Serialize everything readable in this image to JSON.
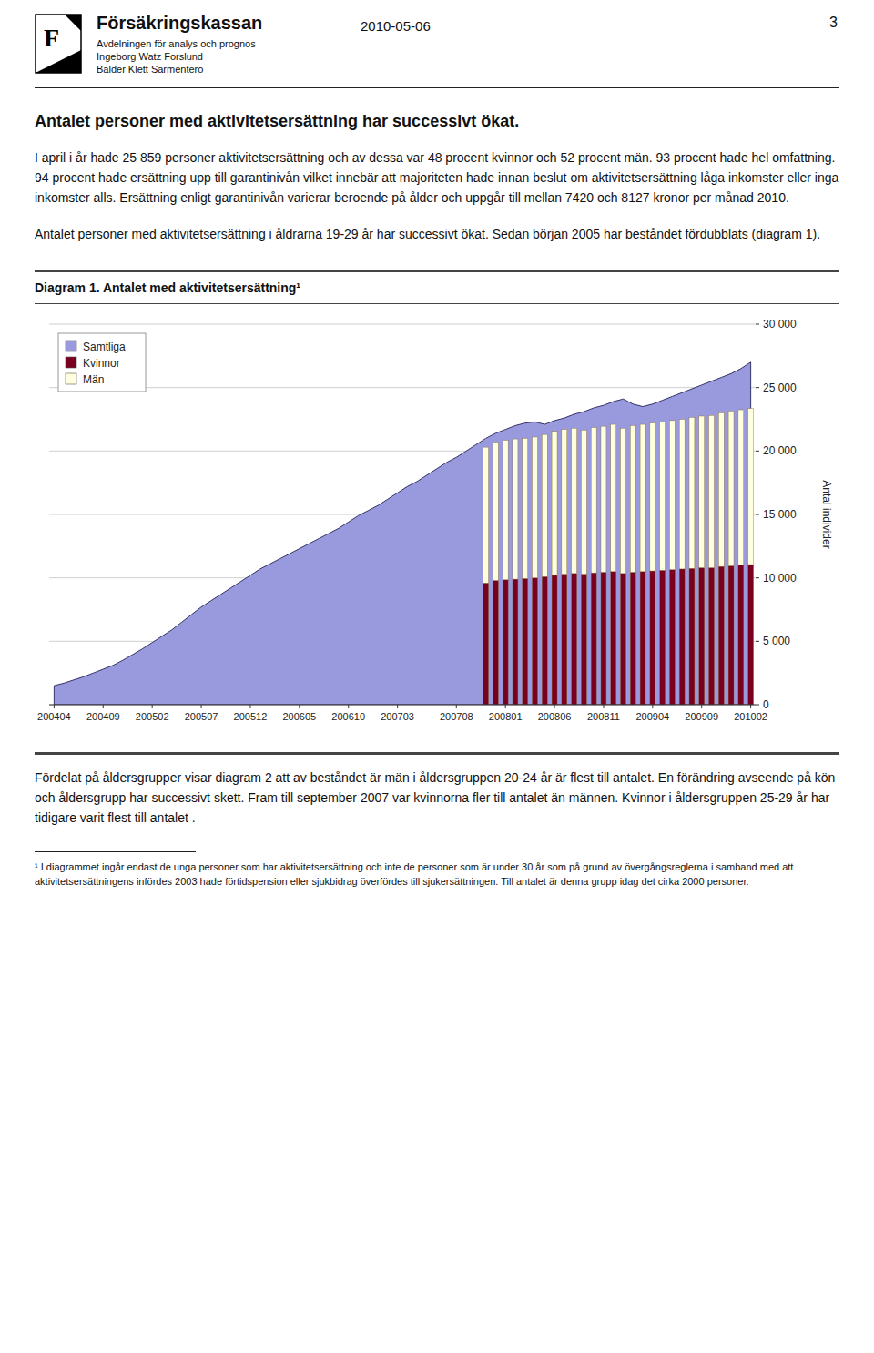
{
  "document": {
    "logo_letter": "F",
    "organization": "Försäkringskassan",
    "department": "Avdelningen för analys och prognos",
    "authors": [
      "Ingeborg Watz Forslund",
      "Balder Klett Sarmentero"
    ],
    "date": "2010-05-06",
    "page": "3",
    "heading": "Antalet personer med aktivitetsersättning har successivt ökat.",
    "paragraphs": [
      "I april i år hade 25 859 personer aktivitetsersättning och av dessa var 48 procent kvinnor och 52 procent män. 93 procent hade hel omfattning. 94 procent hade ersättning upp till garantinivån vilket innebär att majoriteten hade innan beslut om aktivitetsersättning låga inkomster eller inga inkomster alls. Ersättning enligt garantinivån varierar beroende på ålder och uppgår till mellan 7420 och 8127 kronor per månad 2010.",
      "Antalet personer med aktivitetsersättning i åldrarna 19-29 år har successivt ökat. Sedan början 2005 har beståndet fördubblats (diagram 1)."
    ],
    "paragraphs_after": [
      "Fördelat på åldersgrupper visar diagram 2 att av beståndet är män i åldersgruppen 20-24 år är flest till antalet. En förändring avseende på kön och åldersgrupp har successivt skett. Fram till september 2007 var kvinnorna fler till antalet än männen. Kvinnor i åldersgruppen 25-29 år har tidigare varit flest till antalet ."
    ],
    "footnote": "¹ I diagrammet ingår endast de unga personer som har aktivitetsersättning och inte de personer som är under 30 år som på grund av övergångsreglerna i samband med att aktivitetsersättningens infördes 2003 hade förtidspension eller sjukbidrag överfördes till sjukersättningen. Till antalet är denna grupp idag det cirka 2000 personer."
  },
  "chart_data": {
    "type": "bar",
    "title": "Diagram 1. Antalet med aktivitetsersättning¹",
    "ylabel": "Antal individer",
    "categories": [
      "200404",
      null,
      null,
      null,
      null,
      "200409",
      null,
      null,
      null,
      null,
      "200502",
      null,
      null,
      null,
      null,
      "200507",
      null,
      null,
      null,
      null,
      "200512",
      null,
      null,
      null,
      null,
      "200605",
      null,
      null,
      null,
      null,
      "200610",
      null,
      null,
      null,
      null,
      "200703",
      null,
      null,
      null,
      null,
      null,
      "200708",
      null,
      null,
      null,
      null,
      "200801",
      null,
      null,
      null,
      null,
      "200806",
      null,
      null,
      null,
      null,
      "200811",
      null,
      null,
      null,
      null,
      "200904",
      null,
      null,
      null,
      null,
      "200909",
      null,
      null,
      null,
      null,
      "201002"
    ],
    "series": [
      {
        "name": "Samtliga",
        "type": "area",
        "color": "#9999dd",
        "values": [
          1500,
          1700,
          1950,
          2200,
          2500,
          2800,
          3100,
          3500,
          3950,
          4400,
          4900,
          5400,
          5900,
          6500,
          7100,
          7700,
          8200,
          8700,
          9200,
          9700,
          10200,
          10700,
          11100,
          11500,
          11900,
          12300,
          12700,
          13100,
          13500,
          13900,
          14400,
          14900,
          15300,
          15700,
          16200,
          16700,
          17200,
          17600,
          18100,
          18600,
          19100,
          19500,
          20000,
          20500,
          21000,
          21400,
          21700,
          22000,
          22200,
          22300,
          22100,
          22400,
          22600,
          22900,
          23100,
          23400,
          23600,
          23900,
          24100,
          23700,
          23500,
          23700,
          24000,
          24300,
          24600,
          24900,
          25200,
          25500,
          25800,
          26100,
          26500,
          27000
        ]
      },
      {
        "name": "Kvinnor",
        "type": "bar",
        "color": "#7a0020",
        "values": [
          null,
          null,
          null,
          null,
          null,
          null,
          null,
          null,
          null,
          null,
          null,
          null,
          null,
          null,
          null,
          null,
          null,
          null,
          null,
          null,
          null,
          null,
          null,
          null,
          null,
          null,
          null,
          null,
          null,
          null,
          null,
          null,
          null,
          null,
          null,
          null,
          null,
          null,
          null,
          null,
          null,
          null,
          null,
          null,
          9600,
          9800,
          9850,
          9900,
          9950,
          10000,
          10100,
          10200,
          10300,
          10350,
          10300,
          10400,
          10450,
          10500,
          10350,
          10450,
          10500,
          10550,
          10600,
          10650,
          10700,
          10750,
          10800,
          10800,
          10900,
          10950,
          11000,
          11050
        ]
      },
      {
        "name": "Män",
        "type": "bar",
        "color": "#ffffdd",
        "values": [
          null,
          null,
          null,
          null,
          null,
          null,
          null,
          null,
          null,
          null,
          null,
          null,
          null,
          null,
          null,
          null,
          null,
          null,
          null,
          null,
          null,
          null,
          null,
          null,
          null,
          null,
          null,
          null,
          null,
          null,
          null,
          null,
          null,
          null,
          null,
          null,
          null,
          null,
          null,
          null,
          null,
          null,
          null,
          null,
          10700,
          10900,
          11000,
          11050,
          11050,
          11100,
          11200,
          11350,
          11400,
          11450,
          11350,
          11450,
          11500,
          11600,
          11450,
          11550,
          11600,
          11650,
          11700,
          11750,
          11800,
          11900,
          11950,
          12000,
          12100,
          12200,
          12250,
          12300
        ]
      }
    ],
    "stacked": true,
    "ylim": [
      0,
      30000
    ],
    "yticks": [
      0,
      {
        "value": 5000,
        "label": "5 000"
      },
      {
        "value": 10000,
        "label": "10 000"
      },
      {
        "value": 15000,
        "label": "15 000"
      },
      {
        "value": 20000,
        "label": "20 000"
      },
      {
        "value": 25000,
        "label": "25 000"
      },
      {
        "value": 30000,
        "label": "30 000"
      }
    ],
    "grid": true,
    "legend": "upper left"
  }
}
